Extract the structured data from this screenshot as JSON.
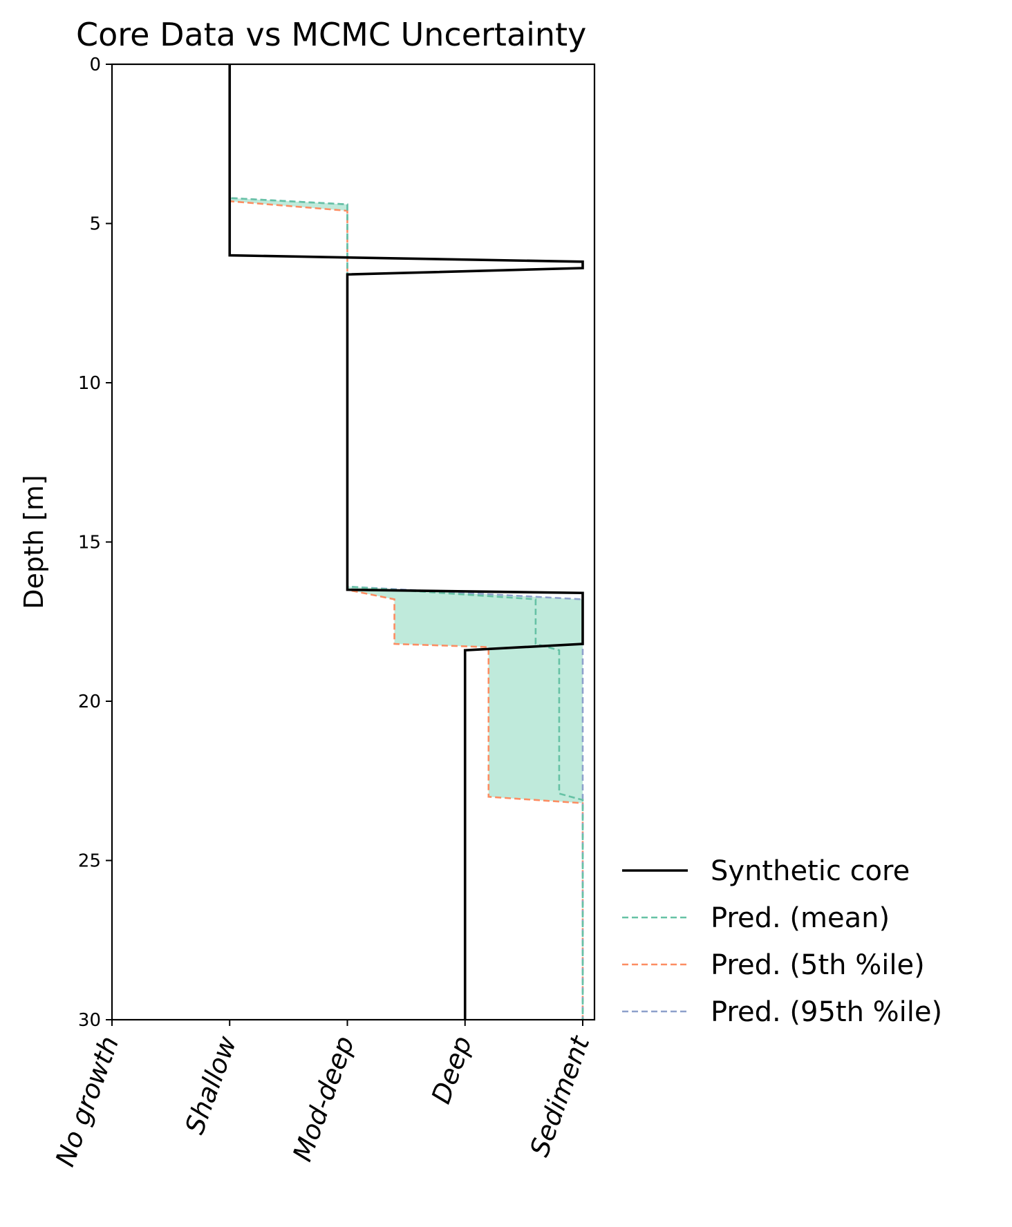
{
  "chart_data": {
    "type": "line",
    "title": "Core Data vs MCMC Uncertainty",
    "xlabel": "",
    "ylabel": "Depth [m]",
    "ylim": [
      30,
      0
    ],
    "yticks": [
      0,
      5,
      10,
      15,
      20,
      25,
      30
    ],
    "ytick_labels": [
      "0",
      "5",
      "10",
      "15",
      "20",
      "25",
      "30"
    ],
    "xlim": [
      0,
      4.1
    ],
    "categories": [
      "No growth",
      "Shallow",
      "Mod-deep",
      "Deep",
      "Sediment"
    ],
    "legend_position": "right, outside plot, lower",
    "grid": false,
    "shaded_band": {
      "between": [
        "Pred. (5th %ile)",
        "Pred. (95th %ile)"
      ],
      "color": "#bfeadb"
    },
    "series": [
      {
        "name": "Synthetic core",
        "color": "#000000",
        "style": "solid",
        "points": [
          [
            1,
            0
          ],
          [
            1,
            4.2
          ],
          [
            1,
            6.0
          ],
          [
            4,
            6.2
          ],
          [
            4,
            6.4
          ],
          [
            2,
            6.6
          ],
          [
            2,
            16.4
          ],
          [
            2,
            16.5
          ],
          [
            4,
            16.6
          ],
          [
            4,
            18.2
          ],
          [
            3,
            18.4
          ],
          [
            3,
            30
          ]
        ]
      },
      {
        "name": "Pred. (mean)",
        "color": "#66c2a5",
        "style": "dashed",
        "points": [
          [
            1,
            0
          ],
          [
            1,
            4.2
          ],
          [
            2,
            4.4
          ],
          [
            2,
            16.4
          ],
          [
            3.6,
            16.8
          ],
          [
            3.6,
            18.2
          ],
          [
            3.8,
            18.4
          ],
          [
            3.8,
            22.9
          ],
          [
            4,
            23.1
          ],
          [
            4,
            30
          ]
        ]
      },
      {
        "name": "Pred. (5th %ile)",
        "color": "#fc8d62",
        "style": "dashed",
        "points": [
          [
            1,
            0
          ],
          [
            1,
            4.3
          ],
          [
            2,
            4.6
          ],
          [
            2,
            16.5
          ],
          [
            2.4,
            16.8
          ],
          [
            2.4,
            18.2
          ],
          [
            3.2,
            18.3
          ],
          [
            3.2,
            23.0
          ],
          [
            4,
            23.2
          ],
          [
            4,
            30
          ]
        ]
      },
      {
        "name": "Pred. (95th %ile)",
        "color": "#8da0cb",
        "style": "dashed",
        "points": [
          [
            1,
            0
          ],
          [
            1,
            4.2
          ],
          [
            2,
            4.4
          ],
          [
            2,
            16.4
          ],
          [
            4,
            16.8
          ],
          [
            4,
            30
          ]
        ]
      }
    ]
  }
}
